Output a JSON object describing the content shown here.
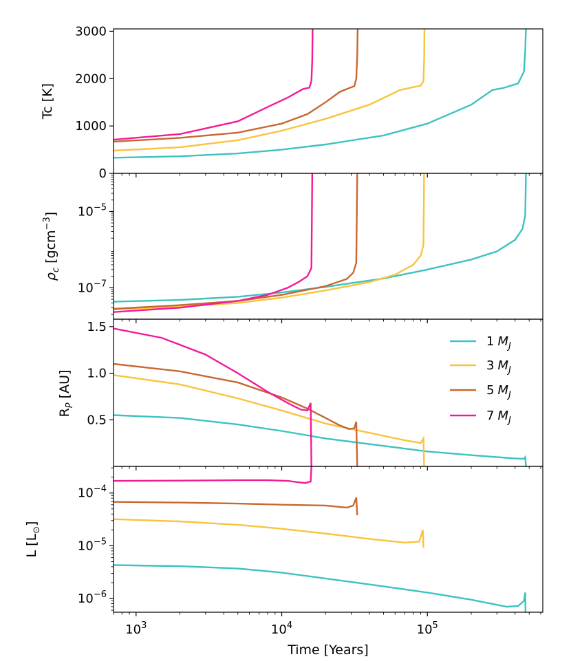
{
  "chart_data": {
    "type": "line",
    "xlabel": "Time [Years]",
    "xscale": "log",
    "xlim": [
      700,
      620000
    ],
    "x_ticks": [
      {
        "value": 1000,
        "base": "10",
        "exp": "3"
      },
      {
        "value": 10000,
        "base": "10",
        "exp": "4"
      },
      {
        "value": 100000,
        "base": "10",
        "exp": "5"
      }
    ],
    "series_colors": {
      "1 MJ": "#3cc3c0",
      "3 MJ": "#f9c33c",
      "5 MJ": "#c8672f",
      "7 MJ": "#f21b97"
    },
    "legend": {
      "placement": "top-right of third panel",
      "entries": [
        {
          "number": "1",
          "symbol": "M",
          "subscript": "J",
          "series": "1 MJ"
        },
        {
          "number": "3",
          "symbol": "M",
          "subscript": "J",
          "series": "3 MJ"
        },
        {
          "number": "5",
          "symbol": "M",
          "subscript": "J",
          "series": "5 MJ"
        },
        {
          "number": "7",
          "symbol": "M",
          "subscript": "J",
          "series": "7 MJ"
        }
      ]
    },
    "panels": [
      {
        "id": "tc",
        "ylabel": "Tc [K]",
        "yscale": "linear",
        "ylim": [
          0,
          3050
        ],
        "y_ticks": [
          {
            "value": 0,
            "label": "0"
          },
          {
            "value": 1000,
            "label": "1000"
          },
          {
            "value": 2000,
            "label": "2000"
          },
          {
            "value": 3000,
            "label": "3000"
          }
        ],
        "series": [
          {
            "name": "1 MJ",
            "points": [
              [
                700,
                330
              ],
              [
                2000,
                360
              ],
              [
                5000,
                420
              ],
              [
                10000,
                500
              ],
              [
                20000,
                610
              ],
              [
                50000,
                800
              ],
              [
                100000,
                1050
              ],
              [
                200000,
                1450
              ],
              [
                280000,
                1760
              ],
              [
                330000,
                1800
              ],
              [
                420000,
                1900
              ],
              [
                460000,
                2150
              ],
              [
                470000,
                2600
              ],
              [
                475000,
                3050
              ]
            ]
          },
          {
            "name": "3 MJ",
            "points": [
              [
                700,
                480
              ],
              [
                2000,
                550
              ],
              [
                5000,
                700
              ],
              [
                10000,
                900
              ],
              [
                20000,
                1150
              ],
              [
                40000,
                1450
              ],
              [
                65000,
                1760
              ],
              [
                80000,
                1820
              ],
              [
                90000,
                1850
              ],
              [
                94000,
                1950
              ],
              [
                95000,
                2400
              ],
              [
                95500,
                3050
              ]
            ]
          },
          {
            "name": "5 MJ",
            "points": [
              [
                700,
                670
              ],
              [
                2000,
                750
              ],
              [
                5000,
                860
              ],
              [
                10000,
                1050
              ],
              [
                15000,
                1250
              ],
              [
                20000,
                1500
              ],
              [
                25000,
                1720
              ],
              [
                29000,
                1800
              ],
              [
                31500,
                1840
              ],
              [
                32500,
                2000
              ],
              [
                33000,
                2500
              ],
              [
                33200,
                3050
              ]
            ]
          },
          {
            "name": "7 MJ",
            "points": [
              [
                700,
                710
              ],
              [
                2000,
                830
              ],
              [
                5000,
                1100
              ],
              [
                8000,
                1400
              ],
              [
                11000,
                1600
              ],
              [
                14000,
                1780
              ],
              [
                15500,
                1810
              ],
              [
                16000,
                1950
              ],
              [
                16200,
                2400
              ],
              [
                16300,
                3050
              ]
            ]
          }
        ]
      },
      {
        "id": "rho",
        "ylabel_parts": {
          "symbol": "ρ",
          "sub": "c",
          "unit": " [gcm",
          "exp": "−3",
          "close": "]"
        },
        "yscale": "log",
        "ylim": [
          1.5e-08,
          0.0001
        ],
        "y_ticks": [
          {
            "value": 1e-07,
            "base": "10",
            "exp": "−7"
          },
          {
            "value": 1e-05,
            "base": "10",
            "exp": "−5"
          }
        ],
        "series": [
          {
            "name": "1 MJ",
            "points": [
              [
                700,
                4.3e-08
              ],
              [
                2000,
                4.8e-08
              ],
              [
                5000,
                5.8e-08
              ],
              [
                10000,
                7.5e-08
              ],
              [
                20000,
                1.05e-07
              ],
              [
                50000,
                1.75e-07
              ],
              [
                100000,
                3e-07
              ],
              [
                200000,
                5.5e-07
              ],
              [
                300000,
                9e-07
              ],
              [
                400000,
                1.8e-06
              ],
              [
                450000,
                3.5e-06
              ],
              [
                470000,
                8e-06
              ],
              [
                475000,
                0.0001
              ]
            ]
          },
          {
            "name": "3 MJ",
            "points": [
              [
                700,
                2.7e-08
              ],
              [
                2000,
                3.2e-08
              ],
              [
                5000,
                4e-08
              ],
              [
                10000,
                5.5e-08
              ],
              [
                20000,
                8.5e-08
              ],
              [
                40000,
                1.4e-07
              ],
              [
                60000,
                2.2e-07
              ],
              [
                80000,
                4e-07
              ],
              [
                90000,
                7e-07
              ],
              [
                94000,
                1.3e-06
              ],
              [
                95000,
                0.0001
              ]
            ]
          },
          {
            "name": "5 MJ",
            "points": [
              [
                700,
                2.8e-08
              ],
              [
                2000,
                3.5e-08
              ],
              [
                5000,
                4.5e-08
              ],
              [
                10000,
                6.5e-08
              ],
              [
                20000,
                1.1e-07
              ],
              [
                28000,
                1.7e-07
              ],
              [
                31000,
                2.5e-07
              ],
              [
                32500,
                4.5e-07
              ],
              [
                33000,
                0.0001
              ]
            ]
          },
          {
            "name": "7 MJ",
            "points": [
              [
                700,
                2.3e-08
              ],
              [
                2000,
                3e-08
              ],
              [
                5000,
                4.5e-08
              ],
              [
                8000,
                6.5e-08
              ],
              [
                11000,
                1e-07
              ],
              [
                13000,
                1.4e-07
              ],
              [
                15000,
                2e-07
              ],
              [
                16000,
                3.3e-07
              ],
              [
                16200,
                0.0001
              ]
            ]
          }
        ]
      },
      {
        "id": "rp",
        "ylabel_parts": {
          "prefix": "R",
          "sub": "P",
          "unit": " [AU]"
        },
        "yscale": "linear",
        "ylim": [
          0,
          1.58
        ],
        "y_ticks": [
          {
            "value": 0.5,
            "label": "0.5"
          },
          {
            "value": 1.0,
            "label": "1.0"
          },
          {
            "value": 1.5,
            "label": "1.5"
          }
        ],
        "series": [
          {
            "name": "1 MJ",
            "points": [
              [
                700,
                0.55
              ],
              [
                2000,
                0.52
              ],
              [
                5000,
                0.45
              ],
              [
                10000,
                0.38
              ],
              [
                20000,
                0.3
              ],
              [
                50000,
                0.22
              ],
              [
                100000,
                0.16
              ],
              [
                200000,
                0.12
              ],
              [
                400000,
                0.085
              ],
              [
                460000,
                0.082
              ],
              [
                470000,
                0.1
              ],
              [
                472000,
                0.06
              ],
              [
                475000,
                0
              ]
            ]
          },
          {
            "name": "3 MJ",
            "points": [
              [
                700,
                0.98
              ],
              [
                2000,
                0.88
              ],
              [
                5000,
                0.73
              ],
              [
                10000,
                0.6
              ],
              [
                20000,
                0.46
              ],
              [
                40000,
                0.36
              ],
              [
                70000,
                0.28
              ],
              [
                90000,
                0.25
              ],
              [
                94000,
                0.3
              ],
              [
                95000,
                0
              ]
            ]
          },
          {
            "name": "5 MJ",
            "points": [
              [
                700,
                1.1
              ],
              [
                2000,
                1.02
              ],
              [
                5000,
                0.9
              ],
              [
                10000,
                0.74
              ],
              [
                15000,
                0.62
              ],
              [
                20000,
                0.52
              ],
              [
                25000,
                0.44
              ],
              [
                29000,
                0.4
              ],
              [
                31500,
                0.41
              ],
              [
                32500,
                0.48
              ],
              [
                33000,
                0
              ]
            ]
          },
          {
            "name": "7 MJ",
            "points": [
              [
                700,
                1.48
              ],
              [
                1500,
                1.38
              ],
              [
                3000,
                1.2
              ],
              [
                5000,
                1
              ],
              [
                8000,
                0.8
              ],
              [
                11000,
                0.68
              ],
              [
                13500,
                0.61
              ],
              [
                15000,
                0.6
              ],
              [
                15800,
                0.68
              ],
              [
                16000,
                0
              ]
            ]
          }
        ]
      },
      {
        "id": "lum",
        "ylabel_parts": {
          "prefix": "L [L",
          "sub": "⊙",
          "close": "]"
        },
        "yscale": "log",
        "ylim": [
          5.5e-07,
          0.00032
        ],
        "y_ticks": [
          {
            "value": 1e-06,
            "base": "10",
            "exp": "−6"
          },
          {
            "value": 1e-05,
            "base": "10",
            "exp": "−5"
          },
          {
            "value": 0.0001,
            "base": "10",
            "exp": "−4"
          }
        ],
        "series": [
          {
            "name": "1 MJ",
            "points": [
              [
                700,
                4.3e-06
              ],
              [
                2000,
                4.1e-06
              ],
              [
                5000,
                3.7e-06
              ],
              [
                10000,
                3.1e-06
              ],
              [
                20000,
                2.4e-06
              ],
              [
                50000,
                1.7e-06
              ],
              [
                100000,
                1.3e-06
              ],
              [
                200000,
                9.5e-07
              ],
              [
                350000,
                7e-07
              ],
              [
                420000,
                7.2e-07
              ],
              [
                460000,
                9e-07
              ],
              [
                470000,
                1.3e-06
              ],
              [
                472000,
                5.5e-07
              ]
            ]
          },
          {
            "name": "3 MJ",
            "points": [
              [
                700,
                3.2e-05
              ],
              [
                2000,
                2.9e-05
              ],
              [
                5000,
                2.5e-05
              ],
              [
                10000,
                2.1e-05
              ],
              [
                20000,
                1.7e-05
              ],
              [
                40000,
                1.35e-05
              ],
              [
                70000,
                1.15e-05
              ],
              [
                88000,
                1.2e-05
              ],
              [
                93000,
                2e-05
              ],
              [
                94000,
                9.2e-06
              ]
            ]
          },
          {
            "name": "5 MJ",
            "points": [
              [
                700,
                6.8e-05
              ],
              [
                2000,
                6.6e-05
              ],
              [
                5000,
                6.3e-05
              ],
              [
                10000,
                6e-05
              ],
              [
                20000,
                5.8e-05
              ],
              [
                28000,
                5.3e-05
              ],
              [
                31000,
                5.8e-05
              ],
              [
                32500,
                8.2e-05
              ],
              [
                33000,
                3.8e-05
              ]
            ]
          },
          {
            "name": "7 MJ",
            "points": [
              [
                700,
                0.00017
              ],
              [
                2000,
                0.000172
              ],
              [
                5000,
                0.000175
              ],
              [
                8000,
                0.000175
              ],
              [
                11000,
                0.00017
              ],
              [
                13000,
                0.00016
              ],
              [
                14500,
                0.000155
              ],
              [
                15800,
                0.000165
              ],
              [
                16000,
                0.00032
              ]
            ]
          }
        ]
      }
    ]
  }
}
